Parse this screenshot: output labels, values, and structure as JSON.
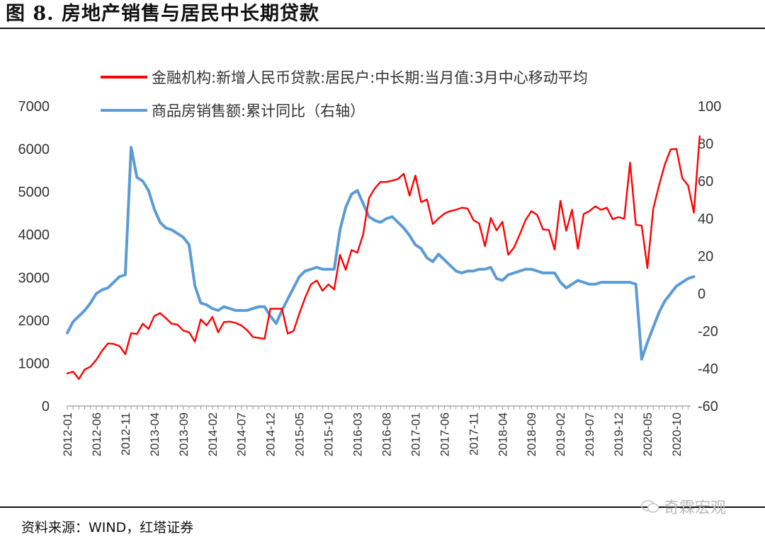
{
  "figure": {
    "title": "图 8. 房地产销售与居民中长期贷款",
    "source": "资料来源：WIND，红塔证券",
    "watermark": "奇霖宏观"
  },
  "chart_data": {
    "type": "line",
    "title": "",
    "xlabel": "",
    "ylabel": "",
    "y2label": "",
    "left_axis": {
      "range": [
        0,
        7000
      ],
      "ticks": [
        0,
        1000,
        2000,
        3000,
        4000,
        5000,
        6000,
        7000
      ]
    },
    "right_axis": {
      "range": [
        -60,
        100
      ],
      "ticks": [
        -60,
        -40,
        -20,
        0,
        20,
        40,
        60,
        80,
        100
      ]
    },
    "x_tick_labels": [
      "2012-01",
      "2012-06",
      "2012-11",
      "2013-04",
      "2013-09",
      "2014-02",
      "2014-07",
      "2014-12",
      "2015-05",
      "2015-10",
      "2016-03",
      "2016-08",
      "2017-01",
      "2017-06",
      "2017-11",
      "2018-04",
      "2018-09",
      "2019-02",
      "2019-07",
      "2019-12",
      "2020-05",
      "2020-10"
    ],
    "grid": false,
    "legend_position": "top",
    "colors": {
      "loans": "#ff0000",
      "sales": "#5b9bd5"
    },
    "series": [
      {
        "name": "金融机构:新增人民币贷款:居民户:中长期:当月值:3月中心移动平均",
        "axis": "left",
        "start": "2012-01",
        "values": [
          760,
          800,
          630,
          850,
          920,
          1080,
          1290,
          1460,
          1450,
          1400,
          1210,
          1700,
          1680,
          1920,
          1800,
          2100,
          2170,
          2050,
          1920,
          1900,
          1760,
          1720,
          1500,
          2020,
          1880,
          2080,
          1720,
          1960,
          1970,
          1940,
          1880,
          1770,
          1610,
          1590,
          1570,
          2270,
          2270,
          2270,
          1690,
          1750,
          2160,
          2530,
          2840,
          2930,
          2690,
          2840,
          2720,
          3530,
          3180,
          3640,
          3580,
          4010,
          4850,
          5080,
          5230,
          5230,
          5260,
          5300,
          5420,
          4910,
          5380,
          4760,
          4820,
          4250,
          4380,
          4490,
          4550,
          4580,
          4630,
          4610,
          4340,
          4260,
          3730,
          4390,
          4100,
          4300,
          3530,
          3700,
          4010,
          4340,
          4550,
          4460,
          4120,
          4110,
          3650,
          4790,
          4090,
          4580,
          3670,
          4480,
          4550,
          4660,
          4580,
          4630,
          4360,
          4410,
          4370,
          5680,
          4230,
          4210,
          3220,
          4600,
          5150,
          5640,
          5990,
          6000,
          5320,
          5150,
          4510,
          6300
        ]
      },
      {
        "name": "商品房销售额:累计同比（右轴）",
        "axis": "right",
        "start": "2012-01",
        "values": [
          -21,
          -15,
          -12,
          -9,
          -5,
          0,
          2,
          3,
          6,
          9,
          10,
          78,
          62,
          60,
          55,
          45,
          38,
          35,
          34,
          32,
          30,
          26,
          4,
          -5,
          -6,
          -8,
          -9,
          -7,
          -8,
          -9,
          -9,
          -9,
          -8,
          -7,
          -7,
          -12,
          -16,
          -9,
          -3,
          3,
          9,
          12,
          13,
          14,
          13,
          13,
          13,
          34,
          46,
          53,
          55,
          48,
          41,
          39,
          38,
          40,
          41,
          38,
          35,
          31,
          26,
          24,
          19,
          17,
          21,
          18,
          15,
          12,
          11,
          12,
          12,
          13,
          13,
          14,
          8,
          7,
          10,
          11,
          12,
          13,
          13,
          12,
          11,
          11,
          11,
          6,
          3,
          5,
          7,
          6,
          5,
          5,
          6,
          6,
          6,
          6,
          6,
          6,
          5,
          -35,
          -26,
          -18,
          -10,
          -4,
          0,
          4,
          6,
          8,
          9
        ]
      }
    ]
  }
}
